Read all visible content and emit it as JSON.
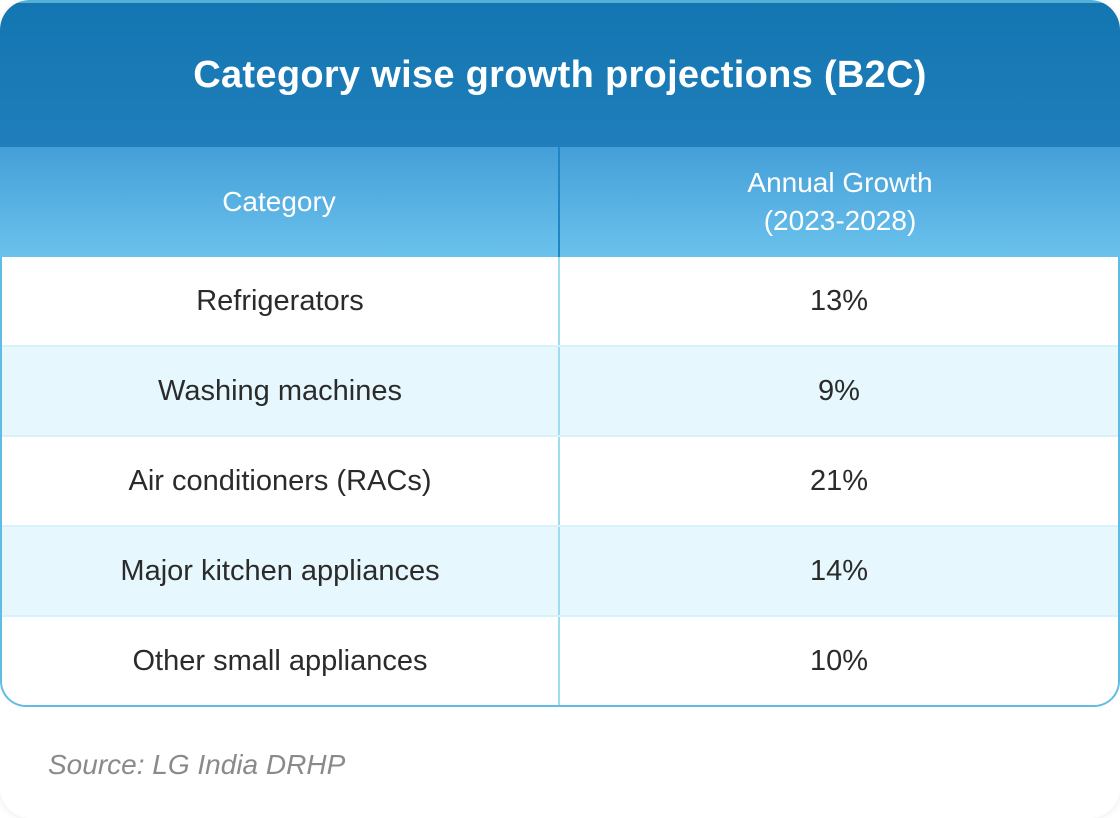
{
  "card": {
    "title": "Category wise growth projections (B2C)",
    "source": "Source: LG India DRHP"
  },
  "table": {
    "header": {
      "category": "Category",
      "growth_line1": "Annual Growth",
      "growth_line2": "(2023-2028)"
    },
    "rows": [
      {
        "category": "Refrigerators",
        "growth": "13%"
      },
      {
        "category": "Washing machines",
        "growth": "9%"
      },
      {
        "category": "Air conditioners (RACs)",
        "growth": "21%"
      },
      {
        "category": "Major kitchen appliances",
        "growth": "14%"
      },
      {
        "category": "Other small appliances",
        "growth": "10%"
      }
    ]
  },
  "chart_data": {
    "type": "table",
    "title": "Category wise growth projections (B2C)",
    "columns": [
      "Category",
      "Annual Growth (2023-2028)"
    ],
    "categories": [
      "Refrigerators",
      "Washing machines",
      "Air conditioners (RACs)",
      "Major kitchen appliances",
      "Other small appliances"
    ],
    "values_pct": [
      13,
      9,
      21,
      14,
      10
    ],
    "source": "Source: LG India DRHP"
  },
  "colors": {
    "title_bar_top": "#1376B1",
    "title_bar_bottom": "#1F7EBB",
    "title_bar_highlight": "#55AFD9",
    "header_gradient_top": "#459FD8",
    "header_gradient_bottom": "#6AC2EC",
    "header_divider": "#1F86C5",
    "table_border": "#5FBCE3",
    "body_divider": "#9FDCEF",
    "row_separator": "#D8F2FA",
    "row_alt_background": "#E6F8FD",
    "body_text": "#2B2B2B",
    "header_text": "#FFFFFF",
    "source_text": "#8A8A8A"
  }
}
